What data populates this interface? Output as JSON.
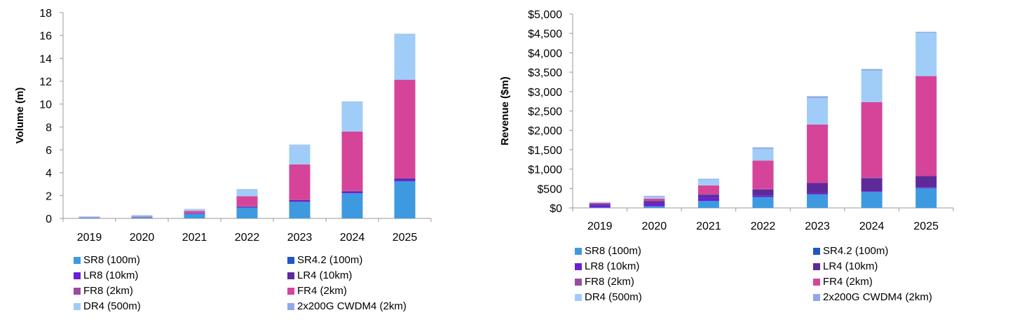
{
  "chart_data": [
    {
      "type": "bar",
      "stacked": true,
      "categories": [
        "2019",
        "2020",
        "2021",
        "2022",
        "2023",
        "2024",
        "2025"
      ],
      "ylabel": "Volume (m)",
      "xlabel": "",
      "ylim": [
        0,
        18
      ],
      "yticks": [
        "0",
        "2",
        "4",
        "6",
        "8",
        "10",
        "12",
        "14",
        "16",
        "18"
      ],
      "legend_position": "bottom",
      "series": [
        {
          "name": "SR8 (100m)",
          "color": "#3d9ae0",
          "values": [
            0.05,
            0.1,
            0.4,
            0.95,
            1.45,
            2.2,
            3.25
          ]
        },
        {
          "name": "SR4.2 (100m)",
          "color": "#2255c8",
          "values": [
            0,
            0,
            0,
            0,
            0,
            0,
            0
          ]
        },
        {
          "name": "LR8 (10km)",
          "color": "#6a1fd6",
          "values": [
            0.01,
            0.01,
            0.03,
            0.05,
            0.08,
            0.1,
            0.15
          ]
        },
        {
          "name": "LR4 (10km)",
          "color": "#5e2a9a",
          "values": [
            0,
            0,
            0,
            0.05,
            0.07,
            0.08,
            0.1
          ]
        },
        {
          "name": "FR8 (2km)",
          "color": "#9a4aa0",
          "values": [
            0.01,
            0.01,
            0.02,
            0.03,
            0.02,
            0.02,
            0.02
          ]
        },
        {
          "name": "FR4 (2km)",
          "color": "#d6449a",
          "values": [
            0.02,
            0.05,
            0.2,
            0.85,
            3.1,
            5.2,
            8.6
          ]
        },
        {
          "name": "DR4 (500m)",
          "color": "#9fcdf7",
          "values": [
            0.06,
            0.1,
            0.15,
            0.6,
            1.7,
            2.6,
            4.0
          ]
        },
        {
          "name": "2x200G  CWDM4 (2km)",
          "color": "#8fa8e8",
          "values": [
            0.02,
            0.02,
            0.02,
            0.03,
            0.03,
            0.03,
            0.03
          ]
        }
      ]
    },
    {
      "type": "bar",
      "stacked": true,
      "categories": [
        "2019",
        "2020",
        "2021",
        "2022",
        "2023",
        "2024",
        "2025"
      ],
      "ylabel": "Revenue ($m)",
      "xlabel": "",
      "ylim": [
        0,
        5000
      ],
      "yticks": [
        "$0",
        "$500",
        "$1,000",
        "$1,500",
        "$2,000",
        "$2,500",
        "$3,000",
        "$3,500",
        "$4,000",
        "$4,500",
        "$5,000"
      ],
      "legend_position": "bottom",
      "series": [
        {
          "name": "SR8 (100m)",
          "color": "#3d9ae0",
          "values": [
            10,
            40,
            180,
            280,
            350,
            410,
            510
          ]
        },
        {
          "name": "SR4.2 (100m)",
          "color": "#2255c8",
          "values": [
            0,
            0,
            0,
            0,
            0,
            0,
            0
          ]
        },
        {
          "name": "LR8 (10km)",
          "color": "#6a1fd6",
          "values": [
            50,
            70,
            80,
            40,
            30,
            20,
            20
          ]
        },
        {
          "name": "LR4 (10km)",
          "color": "#5e2a9a",
          "values": [
            30,
            60,
            80,
            150,
            260,
            340,
            290
          ]
        },
        {
          "name": "FR8 (2km)",
          "color": "#9a4aa0",
          "values": [
            20,
            20,
            20,
            20,
            10,
            10,
            10
          ]
        },
        {
          "name": "FR4 (2km)",
          "color": "#d6449a",
          "values": [
            20,
            50,
            220,
            730,
            1500,
            1950,
            2570
          ]
        },
        {
          "name": "DR4 (500m)",
          "color": "#9fcdf7",
          "values": [
            10,
            50,
            150,
            300,
            680,
            810,
            1110
          ]
        },
        {
          "name": "2x200G  CWDM4 (2km)",
          "color": "#8fa8e8",
          "values": [
            10,
            20,
            20,
            40,
            50,
            40,
            30
          ]
        }
      ]
    }
  ]
}
